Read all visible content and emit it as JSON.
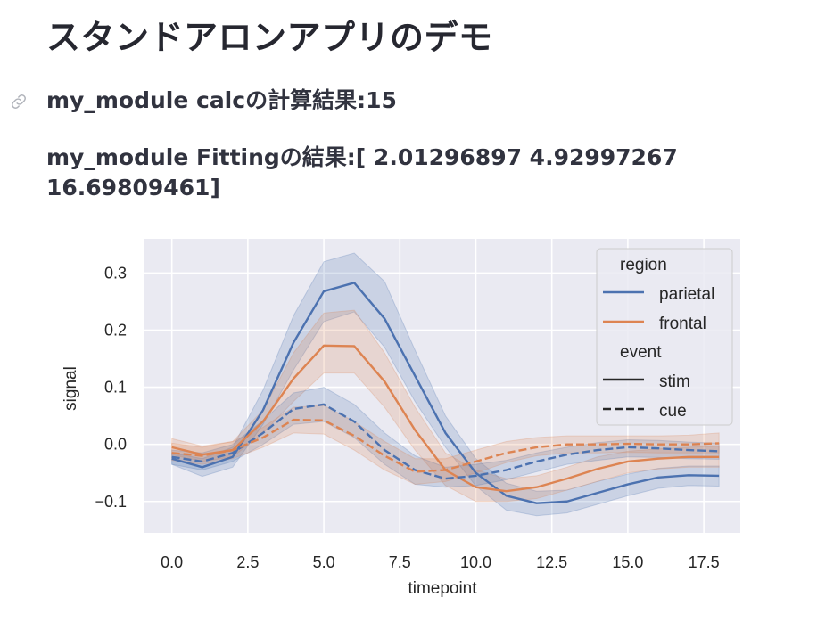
{
  "page": {
    "title": "スタンドアロンアプリのデモ",
    "calc_result": "my_module calcの計算結果:15",
    "fitting_result": "my_module Fittingの結果:[ 2.01296897 4.92997267 16.69809461]",
    "anchor_icon": "link-icon"
  },
  "colors": {
    "parietal": "#4c72b0",
    "frontal": "#dd8452",
    "axes_bg": "#eaeaf2",
    "grid": "#ffffff",
    "text": "#262626"
  },
  "chart_data": {
    "type": "line",
    "title": "",
    "xlabel": "timepoint",
    "ylabel": "signal",
    "xlim": [
      -0.9,
      18.7
    ],
    "ylim": [
      -0.155,
      0.36
    ],
    "xticks": [
      0.0,
      2.5,
      5.0,
      7.5,
      10.0,
      12.5,
      15.0,
      17.5
    ],
    "xtick_labels": [
      "0.0",
      "2.5",
      "5.0",
      "7.5",
      "10.0",
      "12.5",
      "15.0",
      "17.5"
    ],
    "yticks": [
      -0.1,
      0.0,
      0.1,
      0.2,
      0.3
    ],
    "ytick_labels": [
      "−0.1",
      "0.0",
      "0.1",
      "0.2",
      "0.3"
    ],
    "grid": true,
    "legend_position": "upper right",
    "legend": {
      "hue_title": "region",
      "hue_entries": [
        "parietal",
        "frontal"
      ],
      "style_title": "event",
      "style_entries": [
        "stim",
        "cue"
      ]
    },
    "x": [
      0,
      1,
      2,
      3,
      4,
      5,
      6,
      7,
      8,
      9,
      10,
      11,
      12,
      13,
      14,
      15,
      16,
      17,
      18
    ],
    "series": [
      {
        "name": "parietal / stim",
        "region": "parietal",
        "event": "stim",
        "dash": "solid",
        "values": [
          -0.025,
          -0.04,
          -0.022,
          0.06,
          0.178,
          0.268,
          0.283,
          0.22,
          0.12,
          0.02,
          -0.05,
          -0.09,
          -0.103,
          -0.1,
          -0.085,
          -0.07,
          -0.058,
          -0.054,
          -0.055
        ],
        "ci_low": [
          -0.035,
          -0.056,
          -0.04,
          0.035,
          0.13,
          0.215,
          0.232,
          0.17,
          0.075,
          -0.005,
          -0.073,
          -0.115,
          -0.125,
          -0.12,
          -0.105,
          -0.09,
          -0.077,
          -0.072,
          -0.073
        ],
        "ci_high": [
          -0.015,
          -0.025,
          -0.005,
          0.095,
          0.225,
          0.32,
          0.335,
          0.285,
          0.165,
          0.05,
          -0.025,
          -0.068,
          -0.082,
          -0.08,
          -0.065,
          -0.052,
          -0.042,
          -0.038,
          -0.038
        ]
      },
      {
        "name": "frontal / stim",
        "region": "frontal",
        "event": "stim",
        "dash": "solid",
        "values": [
          -0.005,
          -0.018,
          -0.01,
          0.04,
          0.115,
          0.173,
          0.172,
          0.11,
          0.025,
          -0.045,
          -0.075,
          -0.082,
          -0.075,
          -0.06,
          -0.043,
          -0.03,
          -0.025,
          -0.022,
          -0.022
        ],
        "ci_low": [
          -0.018,
          -0.03,
          -0.022,
          0.02,
          0.075,
          0.125,
          0.125,
          0.065,
          -0.01,
          -0.072,
          -0.1,
          -0.1,
          -0.095,
          -0.08,
          -0.065,
          -0.05,
          -0.043,
          -0.04,
          -0.04
        ],
        "ci_high": [
          0.01,
          -0.003,
          0.005,
          0.06,
          0.16,
          0.23,
          0.235,
          0.16,
          0.065,
          -0.015,
          -0.045,
          -0.06,
          -0.055,
          -0.04,
          -0.022,
          -0.012,
          -0.008,
          -0.005,
          -0.003
        ]
      },
      {
        "name": "parietal / cue",
        "region": "parietal",
        "event": "cue",
        "dash": "dashed",
        "values": [
          -0.022,
          -0.03,
          -0.015,
          0.02,
          0.062,
          0.07,
          0.04,
          -0.01,
          -0.045,
          -0.06,
          -0.055,
          -0.045,
          -0.03,
          -0.018,
          -0.01,
          -0.005,
          -0.007,
          -0.01,
          -0.012
        ],
        "ci_low": [
          -0.035,
          -0.045,
          -0.03,
          0.0,
          0.035,
          0.04,
          0.012,
          -0.035,
          -0.07,
          -0.075,
          -0.072,
          -0.062,
          -0.048,
          -0.035,
          -0.028,
          -0.022,
          -0.023,
          -0.025,
          -0.026
        ],
        "ci_high": [
          -0.01,
          -0.015,
          0.0,
          0.042,
          0.09,
          0.1,
          0.07,
          0.02,
          -0.02,
          -0.04,
          -0.035,
          -0.028,
          -0.015,
          -0.005,
          0.003,
          0.008,
          0.007,
          0.004,
          0.002
        ]
      },
      {
        "name": "frontal / cue",
        "region": "frontal",
        "event": "cue",
        "dash": "dashed",
        "values": [
          -0.015,
          -0.02,
          -0.01,
          0.012,
          0.043,
          0.042,
          0.015,
          -0.02,
          -0.048,
          -0.045,
          -0.03,
          -0.015,
          -0.005,
          0.0,
          0.0,
          0.001,
          0.0,
          0.0,
          0.002
        ],
        "ci_low": [
          -0.028,
          -0.035,
          -0.025,
          -0.005,
          0.02,
          0.018,
          -0.01,
          -0.045,
          -0.07,
          -0.065,
          -0.05,
          -0.032,
          -0.02,
          -0.015,
          -0.015,
          -0.014,
          -0.015,
          -0.015,
          -0.015
        ],
        "ci_high": [
          0.002,
          -0.005,
          0.005,
          0.03,
          0.065,
          0.068,
          0.04,
          0.005,
          -0.025,
          -0.025,
          -0.01,
          0.005,
          0.012,
          0.015,
          0.015,
          0.015,
          0.015,
          0.016,
          0.02
        ]
      }
    ]
  }
}
